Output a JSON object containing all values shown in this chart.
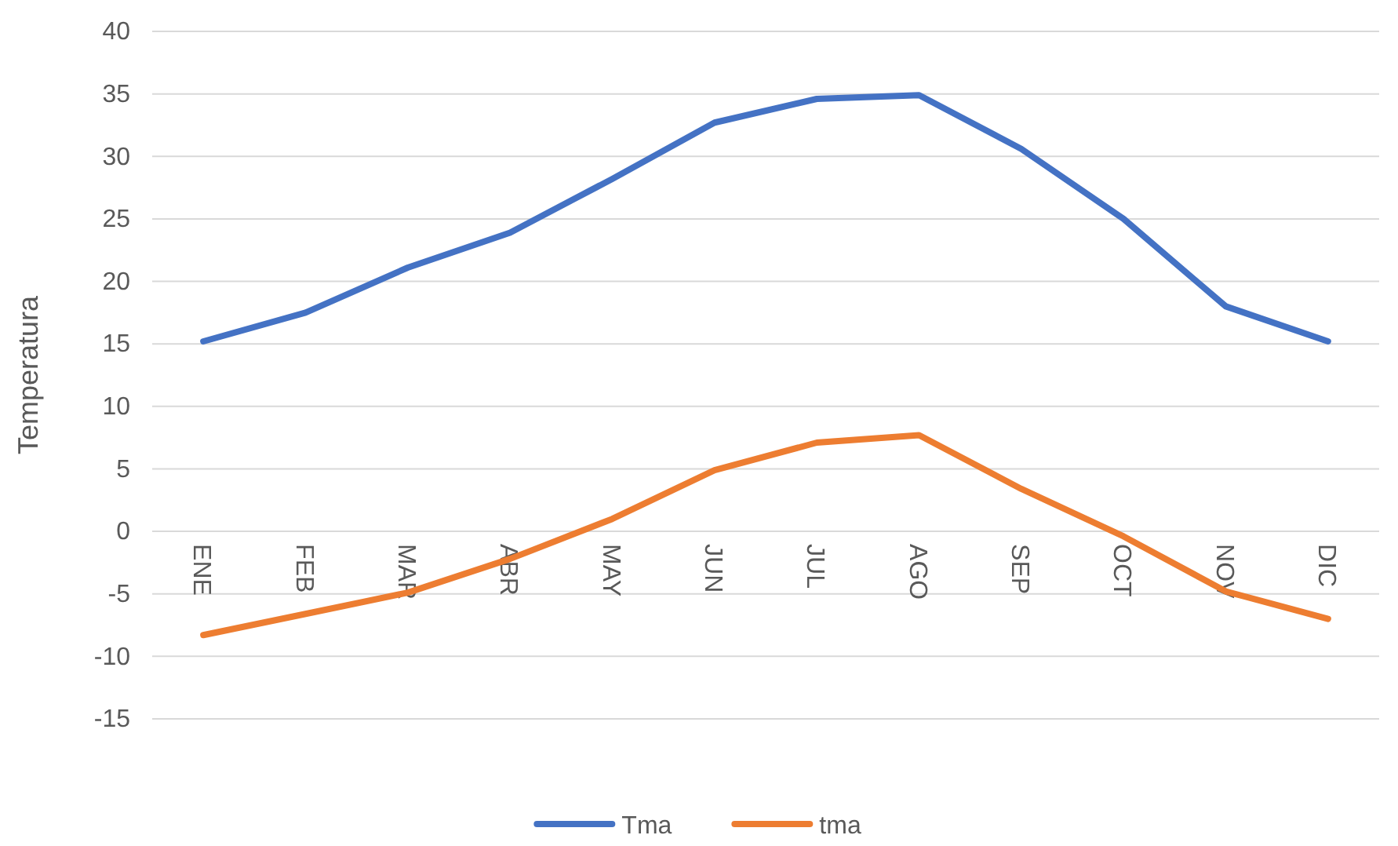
{
  "chart_data": {
    "type": "line",
    "ylabel": "Temperatura",
    "categories": [
      "ENE",
      "FEB",
      "MAR",
      "ABR",
      "MAY",
      "JUN",
      "JUL",
      "AGO",
      "SEP",
      "OCT",
      "NOV",
      "DIC"
    ],
    "series": [
      {
        "name": "Tma",
        "color": "#4472c4",
        "values": [
          15.2,
          17.5,
          21.1,
          23.9,
          28.2,
          32.7,
          34.6,
          34.9,
          30.6,
          25,
          18,
          15.2
        ]
      },
      {
        "name": "tma",
        "color": "#ed7d31",
        "values": [
          -8.3,
          -6.6,
          -4.9,
          -2.2,
          1,
          4.9,
          7.1,
          7.7,
          3.4,
          -0.4,
          -4.8,
          -7
        ]
      }
    ],
    "ylim": [
      -15,
      40
    ],
    "yticks": [
      -15,
      -10,
      -5,
      0,
      5,
      10,
      15,
      20,
      25,
      30,
      35,
      40
    ],
    "grid": "y",
    "legend": "bottom",
    "marker": "none",
    "line_style": "solid"
  }
}
